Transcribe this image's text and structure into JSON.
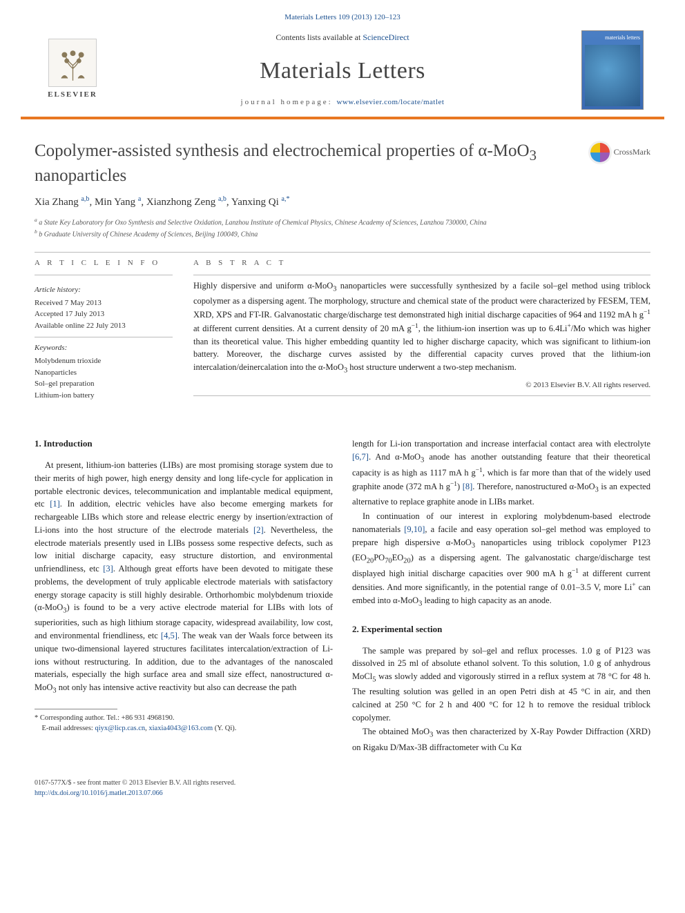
{
  "header": {
    "citation_link_text": "Materials Letters 109 (2013) 120–123",
    "contents_prefix": "Contents lists available at ",
    "contents_link": "ScienceDirect",
    "journal_title": "Materials Letters",
    "homepage_prefix": "journal homepage: ",
    "homepage_link": "www.elsevier.com/locate/matlet",
    "elsevier_label": "ELSEVIER",
    "cover_label": "materials letters"
  },
  "crossmark": {
    "label": "CrossMark"
  },
  "article": {
    "title_html": "Copolymer-assisted synthesis and electrochemical properties of α-MoO<sub>3</sub> nanoparticles",
    "authors_html": "Xia Zhang <sup>a,b</sup>, Min Yang <sup>a</sup>, Xianzhong Zeng <sup>a,b</sup>, Yanxing Qi <sup>a,*</sup>",
    "affiliations": [
      "a State Key Laboratory for Oxo Synthesis and Selective Oxidation, Lanzhou Institute of Chemical Physics, Chinese Academy of Sciences, Lanzhou 730000, China",
      "b Graduate University of Chinese Academy of Sciences, Beijing 100049, China"
    ]
  },
  "info": {
    "heading": "a r t i c l e   i n f o",
    "history_label": "Article history:",
    "history": [
      "Received 7 May 2013",
      "Accepted 17 July 2013",
      "Available online 22 July 2013"
    ],
    "keywords_label": "Keywords:",
    "keywords": [
      "Molybdenum trioxide",
      "Nanoparticles",
      "Sol–gel preparation",
      "Lithium-ion battery"
    ]
  },
  "abstract": {
    "heading": "a b s t r a c t",
    "text_html": "Highly dispersive and uniform α-MoO<sub>3</sub> nanoparticles were successfully synthesized by a facile sol–gel method using triblock copolymer as a dispersing agent. The morphology, structure and chemical state of the product were characterized by FESEM, TEM, XRD, XPS and FT-IR. Galvanostatic charge/discharge test demonstrated high initial discharge capacities of 964 and 1192 mA h g<sup>−1</sup> at different current densities. At a current density of 20 mA g<sup>−1</sup>, the lithium-ion insertion was up to 6.4Li<sup>+</sup>/Mo which was higher than its theoretical value. This higher embedding quantity led to higher discharge capacity, which was significant to lithium-ion battery. Moreover, the discharge curves assisted by the differential capacity curves proved that the lithium-ion intercalation/deinercalation into the α-MoO<sub>3</sub> host structure underwent a two-step mechanism.",
    "copyright": "© 2013 Elsevier B.V. All rights reserved."
  },
  "body": {
    "sec1_heading": "1.  Introduction",
    "p1_html": "At present, lithium-ion batteries (LIBs) are most promising storage system due to their merits of high power, high energy density and long life-cycle for application in portable electronic devices, telecommunication and implantable medical equipment, etc <span class=\"ref\">[1]</span>. In addition, electric vehicles have also become emerging markets for rechargeable LIBs which store and release electric energy by insertion/extraction of Li-ions into the host structure of the electrode materials <span class=\"ref\">[2]</span>. Nevertheless, the electrode materials presently used in LIBs possess some respective defects, such as low initial discharge capacity, easy structure distortion, and environmental unfriendliness, etc <span class=\"ref\">[3]</span>. Although great efforts have been devoted to mitigate these problems, the development of truly applicable electrode materials with satisfactory energy storage capacity is still highly desirable. Orthorhombic molybdenum trioxide (α-MoO<sub>3</sub>) is found to be a very active electrode material for LIBs with lots of superiorities, such as high lithium storage capacity, widespread availability, low cost, and environmental friendliness, etc <span class=\"ref\">[4,5]</span>. The weak van der Waals force between its unique two-dimensional layered structures facilitates intercalation/extraction of Li-ions without restructuring. In addition, due to the advantages of the nanoscaled materials, especially the high surface area and small size effect, nanostructured α-MoO<sub>3</sub> not only has intensive active reactivity but also can decrease the path",
    "corresponding_html": "* Corresponding author. Tel.: +86 931 4968190.",
    "emails_html": "E-mail addresses: <a>qiyx@licp.cas.cn</a>, <a>xiaxia4043@163.com</a> (Y. Qi).",
    "p2_html": "length for Li-ion transportation and increase interfacial contact area with electrolyte <span class=\"ref\">[6,7]</span>. And α-MoO<sub>3</sub> anode has another outstanding feature that their theoretical capacity is as high as 1117 mA h g<sup>−1</sup>, which is far more than that of the widely used graphite anode (372 mA h g<sup>−1</sup>) <span class=\"ref\">[8]</span>. Therefore, nanostructured α-MoO<sub>3</sub> is an expected alternative to replace graphite anode in LIBs market.",
    "p3_html": "In continuation of our interest in exploring molybdenum-based electrode nanomaterials <span class=\"ref\">[9,10]</span>, a facile and easy operation sol–gel method was employed to prepare high dispersive α-MoO<sub>3</sub> nanoparticles using triblock copolymer P123 (EO<sub>20</sub>PO<sub>70</sub>EO<sub>20</sub>) as a dispersing agent. The galvanostatic charge/discharge test displayed high initial discharge capacities over 900 mA h g<sup>−1</sup> at different current densities. And more significantly, in the potential range of 0.01–3.5 V, more Li<sup>+</sup> can embed into α-MoO<sub>3</sub> leading to high capacity as an anode.",
    "sec2_heading": "2.  Experimental section",
    "p4_html": "The sample was prepared by sol–gel and reflux processes. 1.0 g of P123 was dissolved in 25 ml of absolute ethanol solvent. To this solution, 1.0 g of anhydrous MoCl<sub>5</sub> was slowly added and vigorously stirred in a reflux system at 78 °C for 48 h. The resulting solution was gelled in an open Petri dish at 45 °C in air, and then calcined at 250 °C for 2 h and 400 °C for 12 h to remove the residual triblock copolymer.",
    "p5_html": "The obtained MoO<sub>3</sub> was then characterized by X-Ray Powder Diffraction (XRD) on Rigaku D/Max-3B diffractometer with Cu Kα"
  },
  "footer": {
    "line1": "0167-577X/$ - see front matter © 2013 Elsevier B.V. All rights reserved.",
    "doi": "http://dx.doi.org/10.1016/j.matlet.2013.07.066"
  },
  "colors": {
    "link": "#1a4f8f",
    "accent": "#e87722",
    "cover_bg_top": "#4a7fc4",
    "cover_bg_bottom": "#3a6ab4"
  }
}
